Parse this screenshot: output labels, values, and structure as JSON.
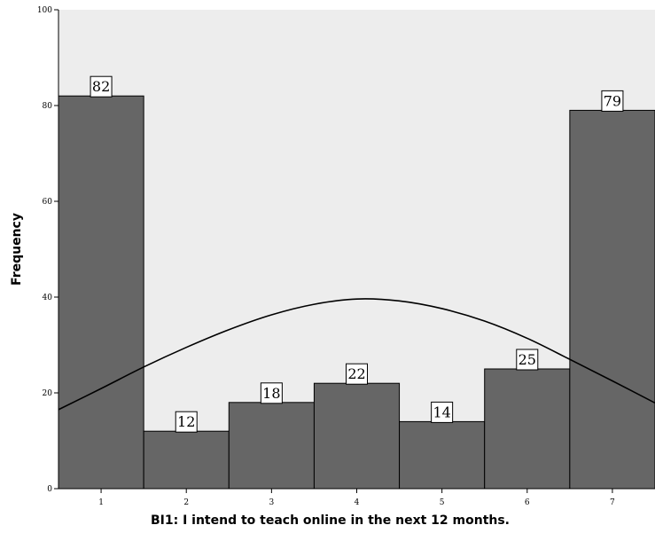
{
  "chart_data": {
    "type": "bar",
    "categories": [
      "1",
      "2",
      "3",
      "4",
      "5",
      "6",
      "7"
    ],
    "values": [
      82,
      12,
      18,
      22,
      14,
      25,
      79
    ],
    "data_labels": [
      "82",
      "12",
      "18",
      "22",
      "14",
      "25",
      "79"
    ],
    "xlabel": "BI1: I intend to teach online in the next 12 months.",
    "ylabel": "Frequency",
    "ylim": [
      0,
      100
    ],
    "yticks": [
      "0",
      "20",
      "40",
      "60",
      "80",
      "100"
    ],
    "xlim": [
      0.5,
      7.5
    ],
    "grid": false,
    "overlay": {
      "type": "normal-curve",
      "points": [
        [
          0.5,
          16.5
        ],
        [
          1.0,
          20.9
        ],
        [
          1.5,
          25.4
        ],
        [
          2.0,
          29.5
        ],
        [
          2.5,
          33.2
        ],
        [
          3.0,
          36.3
        ],
        [
          3.5,
          38.5
        ],
        [
          4.0,
          39.6
        ],
        [
          4.5,
          39.2
        ],
        [
          5.0,
          37.6
        ],
        [
          5.5,
          35.0
        ],
        [
          6.0,
          31.4
        ],
        [
          6.5,
          27.0
        ],
        [
          7.0,
          22.5
        ],
        [
          7.5,
          17.9
        ]
      ]
    },
    "colors": {
      "bar_fill": "#666666",
      "bar_stroke": "#000000",
      "plot_background": "#ededed",
      "curve": "#000000"
    }
  }
}
